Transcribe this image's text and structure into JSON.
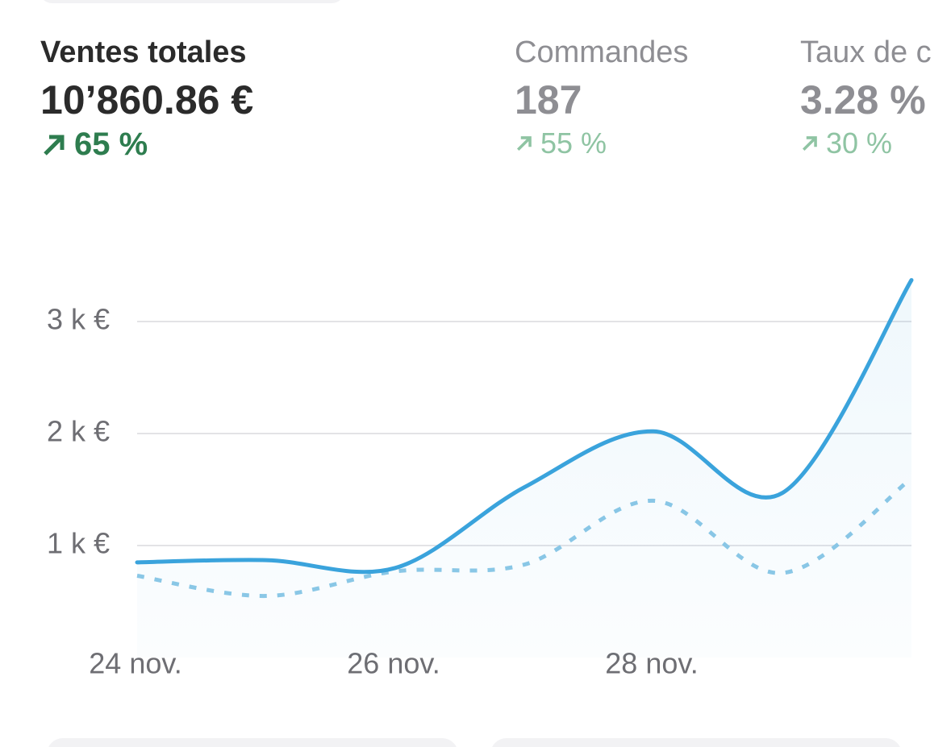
{
  "metrics": [
    {
      "label": "Ventes totales",
      "value": "10’860.86 €",
      "change": "65 %"
    },
    {
      "label": "Commandes",
      "value": "187",
      "change": "55 %"
    },
    {
      "label": "Taux de c",
      "value": "3.28 %",
      "change": "30 %"
    }
  ],
  "chart_data": {
    "type": "line",
    "categories": [
      "24 nov.",
      null,
      "26 nov.",
      null,
      "28 nov.",
      null,
      null
    ],
    "series": [
      {
        "color": "#3aa3dc",
        "style": "solid",
        "fill": true,
        "values": [
          850,
          870,
          800,
          1520,
          2020,
          1470,
          3370
        ]
      },
      {
        "color": "#8cc8e6",
        "style": "dashed",
        "fill": false,
        "values": [
          730,
          550,
          770,
          830,
          1400,
          755,
          1600
        ]
      }
    ],
    "ylim": [
      0,
      3500
    ],
    "yticks": [
      {
        "value": 1000,
        "label": "1 k €"
      },
      {
        "value": 2000,
        "label": "2 k €"
      },
      {
        "value": 3000,
        "label": "3 k €"
      }
    ],
    "grid": true
  }
}
